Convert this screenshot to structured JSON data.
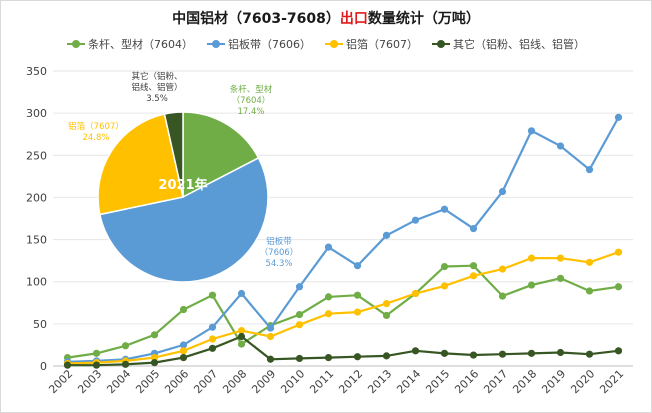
{
  "title": {
    "prefix": "中国铝材（7603-7608）",
    "accent": "出口",
    "suffix": "数量统计（万吨）",
    "accent_color": "#e0191b"
  },
  "chart_data": [
    {
      "type": "line",
      "x": [
        "2002",
        "2003",
        "2004",
        "2005",
        "2006",
        "2007",
        "2008",
        "2009",
        "2010",
        "2011",
        "2012",
        "2013",
        "2014",
        "2015",
        "2016",
        "2017",
        "2018",
        "2019",
        "2020",
        "2021"
      ],
      "ylim": [
        0,
        350
      ],
      "yticks": [
        0,
        50,
        100,
        150,
        200,
        250,
        300,
        350
      ],
      "grid": true,
      "legend_position": "top",
      "series": [
        {
          "name": "条杆、型材（7604）",
          "color": "#70ad47",
          "values": [
            10,
            15,
            24,
            37,
            67,
            84,
            26,
            48,
            61,
            82,
            84,
            60,
            86,
            118,
            119,
            83,
            96,
            104,
            89,
            94
          ]
        },
        {
          "name": "铝板带（7606）",
          "color": "#5b9bd5",
          "values": [
            5,
            6,
            8,
            15,
            25,
            46,
            86,
            45,
            94,
            141,
            119,
            155,
            173,
            186,
            163,
            207,
            279,
            261,
            233,
            295
          ]
        },
        {
          "name": "铝箔（7607）",
          "color": "#ffc000",
          "values": [
            3,
            4,
            6,
            10,
            18,
            32,
            42,
            35,
            49,
            62,
            64,
            74,
            86,
            95,
            107,
            115,
            128,
            128,
            123,
            135
          ]
        },
        {
          "name": "其它（铝粉、铝线、铝管）",
          "color": "#375623",
          "values": [
            1,
            1,
            2,
            4,
            10,
            21,
            35,
            8,
            9,
            10,
            11,
            12,
            18,
            15,
            13,
            14,
            15,
            16,
            14,
            18
          ]
        }
      ]
    },
    {
      "type": "pie",
      "center_label": "2021年",
      "slices": [
        {
          "name": "条杆、型材\n（7604）",
          "percent": 17.4,
          "percent_label": "17.4%",
          "color": "#70ad47"
        },
        {
          "name": "铝板带\n（7606）",
          "percent": 54.3,
          "percent_label": "54.3%",
          "color": "#5b9bd5"
        },
        {
          "name": "铝箔（7607）",
          "percent": 24.8,
          "percent_label": "24.8%",
          "color": "#ffc000"
        },
        {
          "name": "其它（铝粉、\n铝线、铝管）",
          "percent": 3.5,
          "percent_label": "3.5%",
          "color": "#375623"
        }
      ]
    }
  ]
}
